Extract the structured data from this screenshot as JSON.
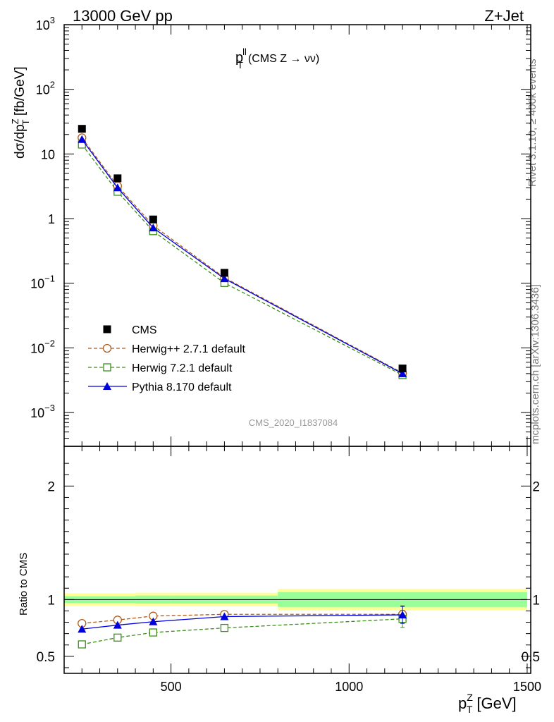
{
  "header": {
    "left": "13000 GeV pp",
    "right": "Z+Jet"
  },
  "side_labels": {
    "rivet": "Rivet 3.1.10, ≥ 400k events",
    "mcplots": "mcplots.cern.ch [arXiv:1306.3436]"
  },
  "watermark": "CMS_2020_I1837084",
  "chart_data": [
    {
      "type": "scatter",
      "panel": "main",
      "title": "p_T^ll (CMS Z → νν)",
      "title_parts": {
        "p": "p",
        "sup": "ll",
        "sub": "T",
        "rest": "(CMS Z → νν)"
      },
      "ylabel": "dσ/dp_T^Z [fb/GeV]",
      "yscale": "log",
      "ylim": [
        0.0003,
        1000
      ],
      "xlim": [
        200,
        1510
      ],
      "ytick_labels": [
        "10^-3",
        "10^-2",
        "10^-1",
        "1",
        "10",
        "10^2",
        "10^3"
      ],
      "legend_position": "lower-left",
      "x": [
        250,
        350,
        450,
        650,
        1150
      ],
      "series": [
        {
          "name": "CMS",
          "values": [
            24.5,
            4.2,
            0.97,
            0.145,
            0.0048
          ],
          "color": "#000000",
          "marker": "filled-square",
          "line": "none"
        },
        {
          "name": "Herwig++ 2.7.1 default",
          "values": [
            17.8,
            3.2,
            0.78,
            0.122,
            0.0041
          ],
          "color": "#b05c1c",
          "marker": "open-circle",
          "line": "dashed"
        },
        {
          "name": "Herwig 7.2.1 default",
          "values": [
            14.0,
            2.6,
            0.64,
            0.101,
            0.0038
          ],
          "color": "#3b8f18",
          "marker": "open-square",
          "line": "dashed"
        },
        {
          "name": "Pythia 8.170 default",
          "values": [
            16.8,
            3.0,
            0.72,
            0.118,
            0.004
          ],
          "color": "#0000dd",
          "marker": "filled-triangle",
          "line": "solid"
        }
      ]
    },
    {
      "type": "line",
      "panel": "ratio",
      "ylabel": "Ratio to CMS",
      "xlabel": "p_T^Z [GeV]",
      "xlabel_parts": {
        "p": "p",
        "sup": "Z",
        "sub": "T",
        "rest": "[GeV]"
      },
      "ylim": [
        0.35,
        2.35
      ],
      "xlim": [
        200,
        1510
      ],
      "xticks": [
        500,
        1000,
        1500
      ],
      "yticks": [
        0.5,
        1,
        2
      ],
      "x": [
        250,
        350,
        450,
        650,
        1150
      ],
      "bins": [
        [
          200,
          300
        ],
        [
          300,
          400
        ],
        [
          400,
          500
        ],
        [
          500,
          800
        ],
        [
          800,
          1500
        ]
      ],
      "band_outer": [
        0.055,
        0.055,
        0.06,
        0.06,
        0.095
      ],
      "band_inner": [
        0.03,
        0.03,
        0.035,
        0.035,
        0.065
      ],
      "band_colors": {
        "outer": "#ffff99",
        "inner": "#99ff99"
      },
      "series": [
        {
          "name": "Herwig++ 2.7.1 default",
          "values": [
            0.79,
            0.82,
            0.855,
            0.87,
            0.87
          ],
          "color": "#b05c1c",
          "marker": "open-circle",
          "line": "dashed"
        },
        {
          "name": "Herwig 7.2.1 default",
          "values": [
            0.605,
            0.665,
            0.71,
            0.75,
            0.83
          ],
          "color": "#3b8f18",
          "marker": "open-square",
          "line": "dashed"
        },
        {
          "name": "Pythia 8.170 default",
          "values": [
            0.74,
            0.775,
            0.805,
            0.85,
            0.865
          ],
          "color": "#0000dd",
          "marker": "filled-triangle",
          "line": "solid"
        }
      ],
      "last_point_error": 0.075
    }
  ]
}
